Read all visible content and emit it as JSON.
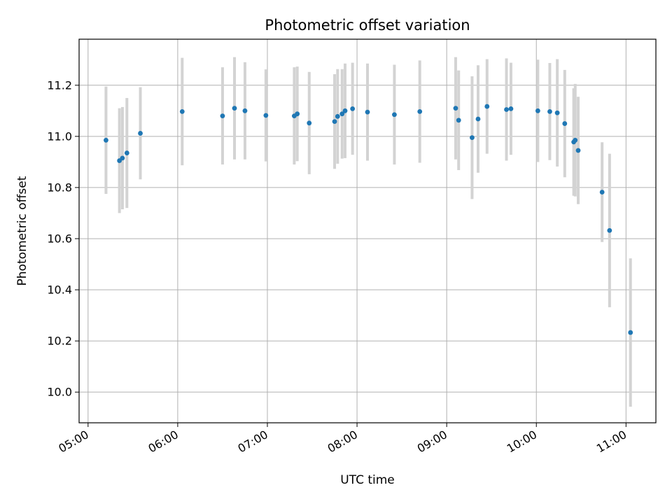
{
  "chart_data": {
    "type": "scatter",
    "title": "Photometric offset variation",
    "xlabel": "UTC time",
    "ylabel": "Photometric offset",
    "x_axis": "time",
    "xlim": [
      "04:54",
      "11:20"
    ],
    "ylim": [
      9.88,
      11.38
    ],
    "x_ticks": [
      "05:00",
      "06:00",
      "07:00",
      "08:00",
      "09:00",
      "10:00",
      "11:00"
    ],
    "y_ticks": [
      "10.0",
      "10.2",
      "10.4",
      "10.6",
      "10.8",
      "11.0",
      "11.2"
    ],
    "grid": true,
    "errorbar_color": "#d3d3d3",
    "point_color": "#1f77b4",
    "series": [
      {
        "points": [
          {
            "x": "05:12",
            "y": 10.985,
            "err": 0.21
          },
          {
            "x": "05:21",
            "y": 10.905,
            "err": 0.205
          },
          {
            "x": "05:23",
            "y": 10.915,
            "err": 0.2
          },
          {
            "x": "05:26",
            "y": 10.935,
            "err": 0.215
          },
          {
            "x": "05:35",
            "y": 11.012,
            "err": 0.18
          },
          {
            "x": "06:03",
            "y": 11.097,
            "err": 0.21
          },
          {
            "x": "06:30",
            "y": 11.08,
            "err": 0.19
          },
          {
            "x": "06:38",
            "y": 11.11,
            "err": 0.2
          },
          {
            "x": "06:45",
            "y": 11.1,
            "err": 0.19
          },
          {
            "x": "06:59",
            "y": 11.082,
            "err": 0.18
          },
          {
            "x": "07:18",
            "y": 11.08,
            "err": 0.19
          },
          {
            "x": "07:20",
            "y": 11.088,
            "err": 0.185
          },
          {
            "x": "07:28",
            "y": 11.052,
            "err": 0.2
          },
          {
            "x": "07:45",
            "y": 11.058,
            "err": 0.185
          },
          {
            "x": "07:47",
            "y": 11.078,
            "err": 0.185
          },
          {
            "x": "07:50",
            "y": 11.088,
            "err": 0.175
          },
          {
            "x": "07:52",
            "y": 11.1,
            "err": 0.185
          },
          {
            "x": "07:57",
            "y": 11.108,
            "err": 0.18
          },
          {
            "x": "08:07",
            "y": 11.095,
            "err": 0.19
          },
          {
            "x": "08:25",
            "y": 11.085,
            "err": 0.195
          },
          {
            "x": "08:42",
            "y": 11.097,
            "err": 0.2
          },
          {
            "x": "09:06",
            "y": 11.11,
            "err": 0.2
          },
          {
            "x": "09:08",
            "y": 11.063,
            "err": 0.195
          },
          {
            "x": "09:17",
            "y": 10.995,
            "err": 0.24
          },
          {
            "x": "09:21",
            "y": 11.068,
            "err": 0.21
          },
          {
            "x": "09:27",
            "y": 11.117,
            "err": 0.185
          },
          {
            "x": "09:40",
            "y": 11.105,
            "err": 0.2
          },
          {
            "x": "09:43",
            "y": 11.108,
            "err": 0.18
          },
          {
            "x": "10:01",
            "y": 11.1,
            "err": 0.2
          },
          {
            "x": "10:09",
            "y": 11.097,
            "err": 0.19
          },
          {
            "x": "10:14",
            "y": 11.092,
            "err": 0.21
          },
          {
            "x": "10:19",
            "y": 11.05,
            "err": 0.21
          },
          {
            "x": "10:25",
            "y": 10.978,
            "err": 0.21
          },
          {
            "x": "10:26",
            "y": 10.985,
            "err": 0.22
          },
          {
            "x": "10:28",
            "y": 10.945,
            "err": 0.21
          },
          {
            "x": "10:44",
            "y": 10.782,
            "err": 0.195
          },
          {
            "x": "10:49",
            "y": 10.632,
            "err": 0.3
          },
          {
            "x": "11:03",
            "y": 10.233,
            "err": 0.29
          }
        ]
      }
    ]
  }
}
